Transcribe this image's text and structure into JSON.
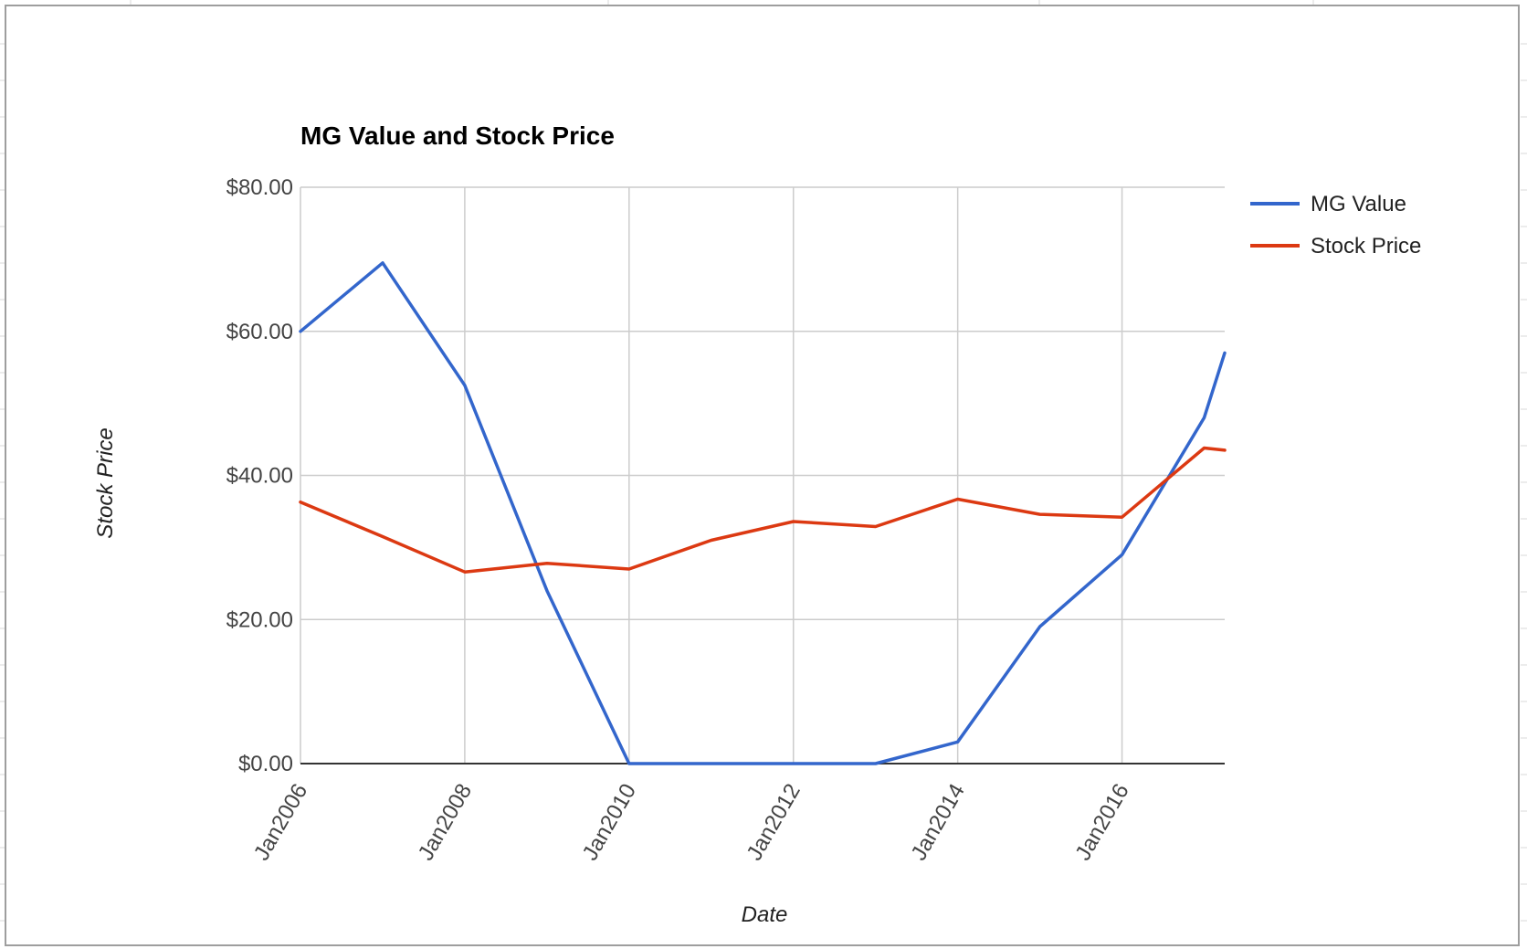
{
  "chart_data": {
    "type": "line",
    "title": "MG Value and Stock Price",
    "xlabel": "Date",
    "ylabel": "Stock Price",
    "x_tick_labels": [
      "Jan2006",
      "Jan2008",
      "Jan2010",
      "Jan2012",
      "Jan2014",
      "Jan2016"
    ],
    "x_tick_years": [
      2006,
      2008,
      2010,
      2012,
      2014,
      2016
    ],
    "y_tick_labels": [
      "$0.00",
      "$20.00",
      "$40.00",
      "$60.00",
      "$80.00"
    ],
    "y_tick_values": [
      0,
      20,
      40,
      60,
      80
    ],
    "xlim": [
      "2006-01",
      "2017-04"
    ],
    "ylim": [
      0,
      80
    ],
    "grid": true,
    "legend_position": "right",
    "series": [
      {
        "name": "MG Value",
        "color": "#3366cc",
        "points": [
          {
            "x": "2006-01",
            "y": 60.0
          },
          {
            "x": "2007-01",
            "y": 69.5
          },
          {
            "x": "2008-01",
            "y": 52.5
          },
          {
            "x": "2009-01",
            "y": 24.0
          },
          {
            "x": "2010-01",
            "y": 0.0
          },
          {
            "x": "2011-01",
            "y": 0.0
          },
          {
            "x": "2012-01",
            "y": 0.0
          },
          {
            "x": "2013-01",
            "y": 0.0
          },
          {
            "x": "2014-01",
            "y": 3.0
          },
          {
            "x": "2015-01",
            "y": 19.0
          },
          {
            "x": "2016-01",
            "y": 29.0
          },
          {
            "x": "2017-01",
            "y": 48.0
          },
          {
            "x": "2017-04",
            "y": 57.0
          }
        ]
      },
      {
        "name": "Stock Price",
        "color": "#dc3912",
        "points": [
          {
            "x": "2006-01",
            "y": 36.3
          },
          {
            "x": "2007-01",
            "y": 31.5
          },
          {
            "x": "2008-01",
            "y": 26.6
          },
          {
            "x": "2009-01",
            "y": 27.8
          },
          {
            "x": "2010-01",
            "y": 27.0
          },
          {
            "x": "2011-01",
            "y": 31.0
          },
          {
            "x": "2012-01",
            "y": 33.6
          },
          {
            "x": "2013-01",
            "y": 32.9
          },
          {
            "x": "2014-01",
            "y": 36.7
          },
          {
            "x": "2015-01",
            "y": 34.6
          },
          {
            "x": "2016-01",
            "y": 34.2
          },
          {
            "x": "2017-01",
            "y": 43.8
          },
          {
            "x": "2017-04",
            "y": 43.5
          }
        ]
      }
    ]
  }
}
